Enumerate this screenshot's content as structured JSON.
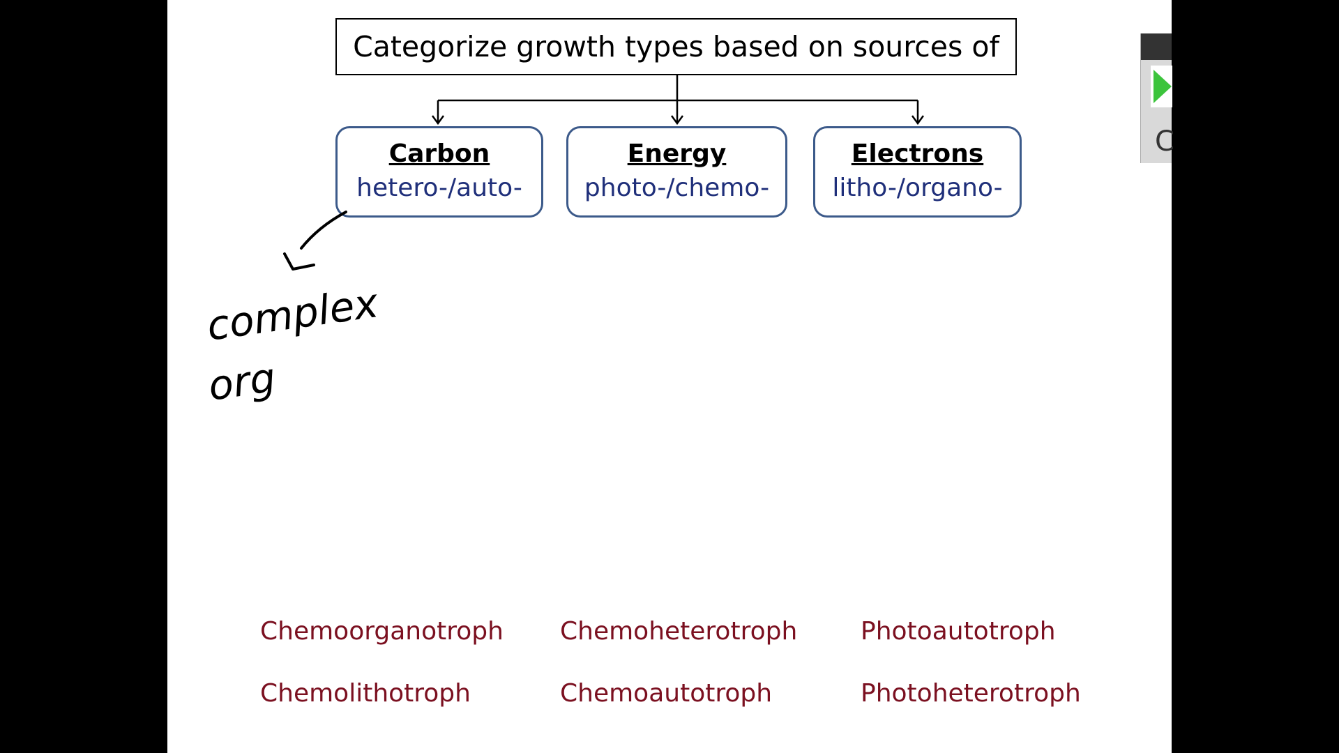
{
  "title": "Categorize growth types based on sources of",
  "categories": [
    {
      "heading": "Carbon",
      "prefixes": "hetero-/auto-"
    },
    {
      "heading": "Energy",
      "prefixes": "photo-/chemo-"
    },
    {
      "heading": "Electrons",
      "prefixes": "litho-/organo-"
    }
  ],
  "terms": [
    "Chemoorganotroph",
    "Chemoheterotroph",
    "Photoautotroph",
    "Chemolithotroph",
    "Chemoautotroph",
    "Photoheterotroph"
  ],
  "handwriting": [
    "complex",
    "org"
  ],
  "player": {
    "caption_glyph": "C"
  },
  "colors": {
    "box_border": "#3c5a8a",
    "prefix_text": "#1f2f7a",
    "term_text": "#7b1020",
    "play": "#3cc43c"
  }
}
